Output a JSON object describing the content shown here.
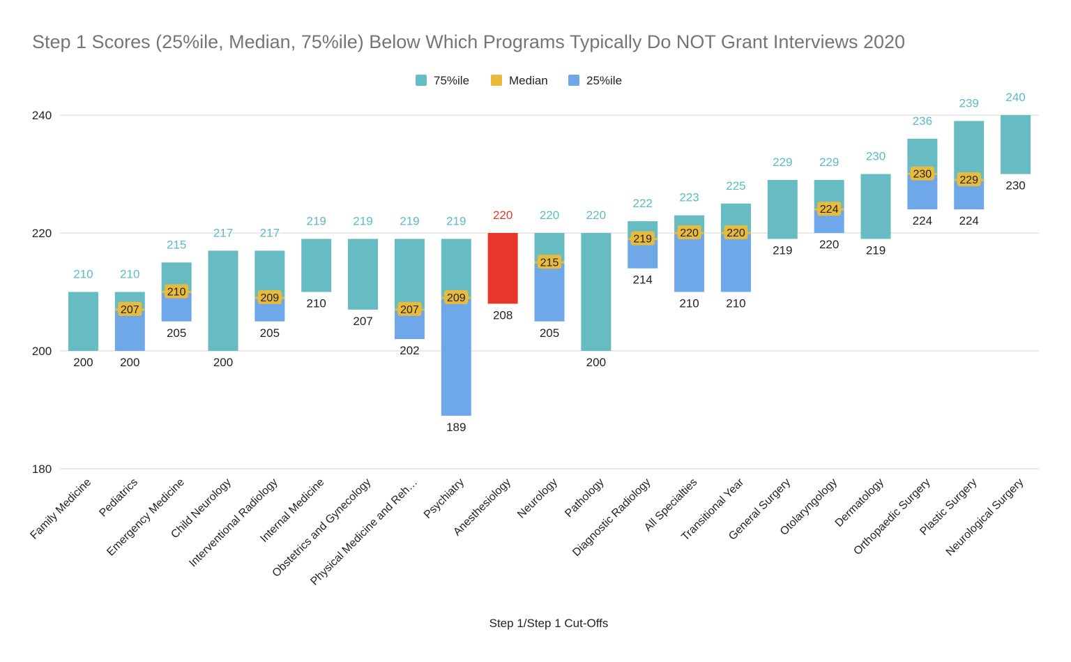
{
  "chart_data": {
    "type": "bar",
    "title": "Step 1 Scores (25%ile, Median, 75%ile) Below Which Programs Typically Do NOT Grant Interviews 2020",
    "xlabel": "Step 1/Step 1 Cut-Offs",
    "ylabel": "",
    "ylim": [
      180,
      240
    ],
    "yticks": [
      180,
      200,
      220,
      240
    ],
    "grid": true,
    "legend_position": "top-center",
    "legend": [
      "75%ile",
      "Median",
      "25%ile"
    ],
    "colors": {
      "p75": "#67bcc3",
      "median": "#e8bb3d",
      "p25": "#6fa8e8",
      "highlight": "#e8362a",
      "top_label": "#5cbac6",
      "highlight_label": "#e8362a"
    },
    "categories": [
      "Family Medicine",
      "Pediatrics",
      "Emergency Medicine",
      "Child Neurology",
      "Interventional Radiology",
      "Internal Medicine",
      "Obstetrics and Gynecology",
      "Physical Medicine and Reh…",
      "Psychiatry",
      "Anesthesiology",
      "Neurology",
      "Pathology",
      "Diagnostic Radiology",
      "All Specialties",
      "Transitional Year",
      "General Surgery",
      "Otolaryngology",
      "Dermatology",
      "Orthopaedic Surgery",
      "Plastic Surgery",
      "Neurological Surgery"
    ],
    "highlight_index": 9,
    "series": [
      {
        "name": "75%ile",
        "values": [
          210,
          210,
          215,
          217,
          217,
          219,
          219,
          219,
          219,
          220,
          220,
          220,
          222,
          223,
          225,
          229,
          229,
          230,
          236,
          239,
          240
        ]
      },
      {
        "name": "Median",
        "values": [
          null,
          207,
          210,
          null,
          209,
          null,
          null,
          207,
          209,
          null,
          215,
          null,
          219,
          220,
          220,
          null,
          224,
          null,
          230,
          229,
          null
        ]
      },
      {
        "name": "25%ile",
        "values": [
          200,
          200,
          205,
          200,
          205,
          210,
          207,
          202,
          189,
          208,
          205,
          200,
          214,
          210,
          210,
          219,
          220,
          219,
          224,
          224,
          230
        ]
      }
    ]
  }
}
